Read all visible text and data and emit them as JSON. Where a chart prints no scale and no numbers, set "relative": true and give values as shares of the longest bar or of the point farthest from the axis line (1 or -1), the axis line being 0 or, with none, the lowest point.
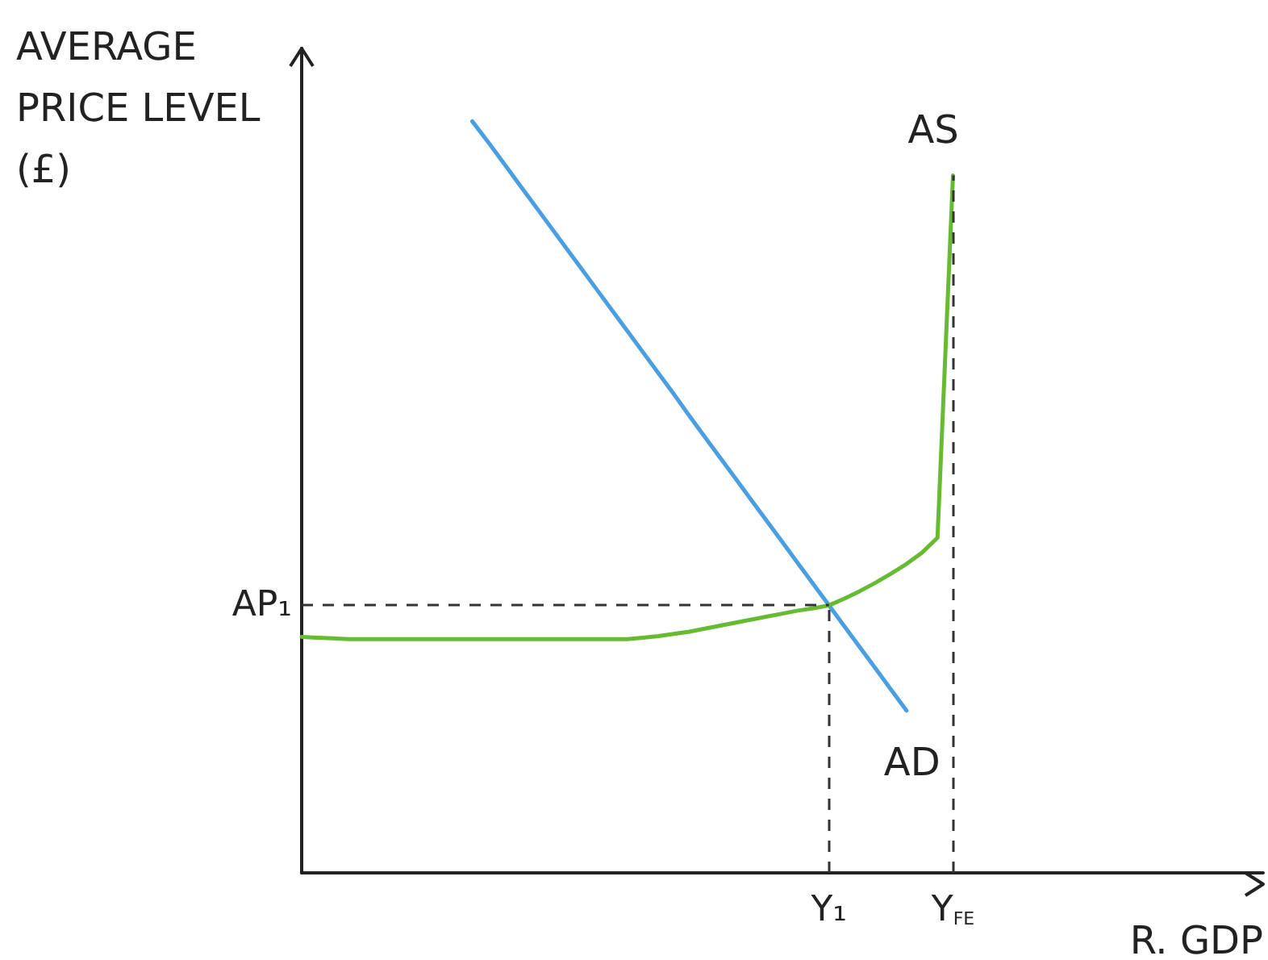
{
  "chart_data": {
    "type": "line",
    "relative": true,
    "ylabel": "AVERAGE PRICE LEVEL (£)",
    "xlabel": "R. GDP",
    "categories": [
      null,
      null,
      null,
      null,
      null,
      null,
      null,
      null,
      null,
      null,
      null,
      null,
      null,
      null,
      null,
      null,
      null,
      null,
      null,
      null,
      null,
      null,
      null,
      null,
      null,
      null,
      null,
      null,
      null,
      null,
      null,
      null,
      null,
      null,
      "Y₁",
      null,
      null,
      null,
      null,
      null,
      null,
      null,
      "Y$_{FE}$",
      null,
      null,
      null,
      null,
      null,
      null,
      null,
      null,
      null,
      null,
      null,
      null,
      null,
      null,
      null,
      null,
      null,
      null,
      null,
      null
    ],
    "series": [
      {
        "name": "AD",
        "color": "#4a9fe0",
        "values": [
          null,
          null,
          null,
          null,
          null,
          null,
          null,
          null,
          null,
          null,
          null,
          1.0,
          0.973,
          0.945,
          0.917,
          0.889,
          0.861,
          0.833,
          0.805,
          0.777,
          0.749,
          0.721,
          0.693,
          0.665,
          0.637,
          0.608,
          0.58,
          0.552,
          0.524,
          0.496,
          0.468,
          0.44,
          0.412,
          0.384,
          0.356,
          0.328,
          0.3,
          0.272,
          0.244,
          0.216,
          null,
          null,
          null,
          null,
          null,
          null,
          null,
          null,
          null,
          null,
          null,
          null,
          null,
          null,
          null,
          null,
          null,
          null,
          null,
          null,
          null,
          null,
          null
        ]
      },
      {
        "name": "AS",
        "color": "#66bb33",
        "values": [
          0.314,
          0.313,
          0.312,
          0.311,
          0.311,
          0.311,
          0.311,
          0.311,
          0.311,
          0.311,
          0.311,
          0.311,
          0.311,
          0.311,
          0.311,
          0.311,
          0.311,
          0.311,
          0.311,
          0.311,
          0.311,
          0.311,
          0.313,
          0.315,
          0.318,
          0.321,
          0.325,
          0.329,
          0.333,
          0.337,
          0.341,
          0.345,
          0.349,
          0.352,
          0.356,
          0.365,
          0.375,
          0.386,
          0.398,
          0.411,
          0.426,
          0.446,
          0.928,
          null,
          null,
          null,
          null,
          null,
          null,
          null,
          null,
          null,
          null,
          null,
          null,
          null,
          null,
          null,
          null,
          null,
          null,
          null,
          null
        ]
      }
    ],
    "ref_lines": [
      {
        "axis": "y",
        "value": 0.356,
        "label": "AP₁",
        "color": "#333333",
        "line_style": "dashed"
      },
      {
        "axis": "x",
        "value": "Y₁",
        "color": "#333333",
        "line_style": "dashed"
      },
      {
        "axis": "x",
        "value": "Y$_{FE}$",
        "color": "#333333",
        "line_style": "dashed"
      }
    ],
    "grid": false,
    "legend": false,
    "marker": "none",
    "line_style": "solid"
  }
}
